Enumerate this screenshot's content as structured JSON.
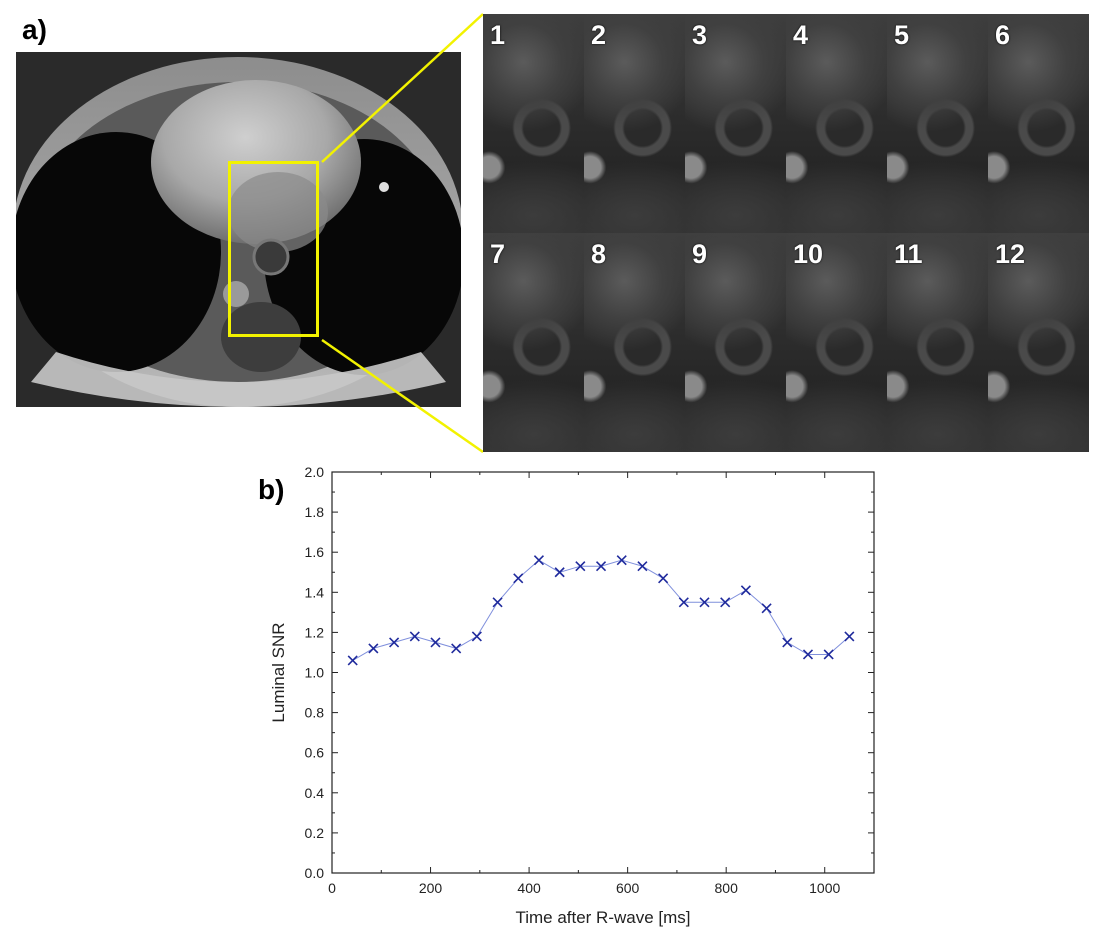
{
  "panel_a": {
    "label": "a)",
    "frames": [
      "1",
      "2",
      "3",
      "4",
      "5",
      "6",
      "7",
      "8",
      "9",
      "10",
      "11",
      "12"
    ]
  },
  "panel_b": {
    "label": "b)"
  },
  "colors": {
    "roi_box": "#f2f200",
    "series": "#1f2a9c",
    "series_line": "#7f8fdc"
  },
  "chart_data": {
    "type": "line",
    "title": "",
    "xlabel": "Time after R-wave [ms]",
    "ylabel": "Luminal SNR",
    "xlim": [
      0,
      1100
    ],
    "ylim": [
      0.0,
      2.0
    ],
    "xticks": [
      "0",
      "200",
      "400",
      "600",
      "800",
      "1000"
    ],
    "yticks": [
      "0.0",
      "0.2",
      "0.4",
      "0.6",
      "0.8",
      "1.0",
      "1.2",
      "1.4",
      "1.6",
      "1.8",
      "2.0"
    ],
    "marker": "x",
    "grid": false,
    "series": [
      {
        "x": [
          42,
          84,
          126,
          168,
          210,
          252,
          294,
          336,
          378,
          420,
          462,
          504,
          546,
          588,
          630,
          672,
          714,
          756,
          798,
          840,
          882,
          924,
          966,
          1008,
          1050
        ],
        "y": [
          1.06,
          1.12,
          1.15,
          1.18,
          1.15,
          1.12,
          1.18,
          1.35,
          1.47,
          1.56,
          1.5,
          1.53,
          1.53,
          1.56,
          1.53,
          1.47,
          1.35,
          1.35,
          1.35,
          1.41,
          1.32,
          1.15,
          1.09,
          1.09,
          1.18
        ]
      }
    ]
  }
}
